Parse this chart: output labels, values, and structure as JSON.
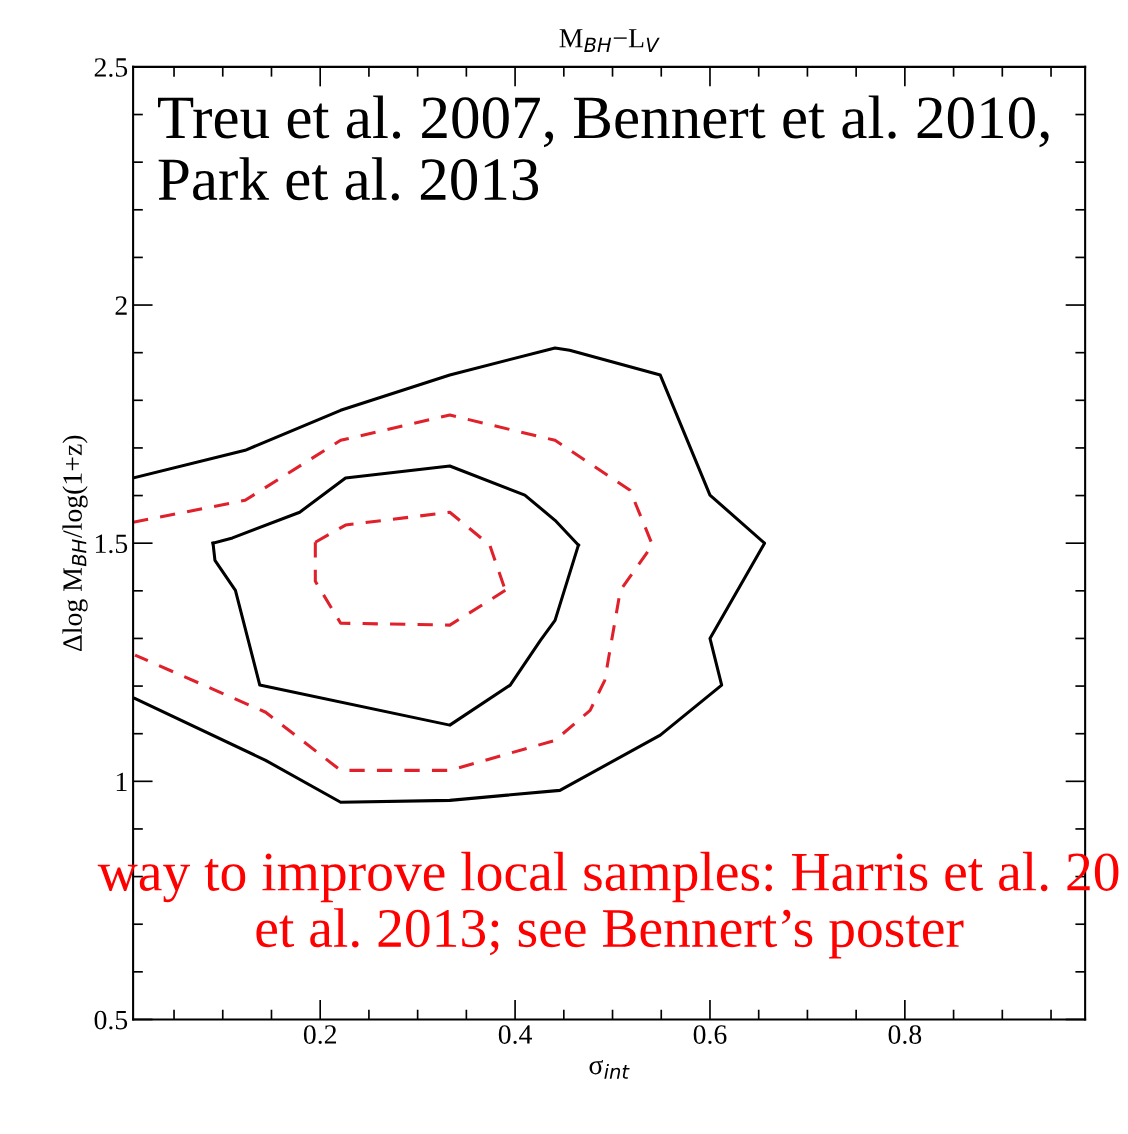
{
  "chart_data": {
    "type": "line",
    "title": "M$_{BH}$−L$_{V}$",
    "xlabel": "σ$_{int}$",
    "ylabel": "Δlog M$_{BH}$/log(1+z)",
    "xlim": [
      0.008,
      0.985
    ],
    "ylim": [
      0.5,
      2.5
    ],
    "xticks": [
      0.2,
      0.4,
      0.6,
      0.8
    ],
    "yticks": [
      0.5,
      1,
      1.5,
      2,
      2.5
    ],
    "grid": false,
    "legend": false,
    "marker": "none",
    "series": [
      {
        "color": "#000000",
        "line_style": "solid",
        "x": [
          0.008,
          0.123,
          0.221,
          0.333,
          0.441,
          0.456,
          0.549,
          0.6,
          0.656,
          0.6,
          0.612,
          0.549,
          0.446,
          0.333,
          0.221,
          0.144,
          0.01
        ],
        "values": [
          1.637,
          1.695,
          1.779,
          1.853,
          1.91,
          1.905,
          1.853,
          1.601,
          1.5,
          1.3,
          1.202,
          1.097,
          0.981,
          0.96,
          0.956,
          1.044,
          1.174
        ]
      },
      {
        "color": "#000000",
        "line_style": "solid",
        "x": [
          0.09,
          0.11,
          0.179,
          0.226,
          0.333,
          0.41,
          0.441,
          0.465
        ],
        "values": [
          1.5,
          1.511,
          1.565,
          1.637,
          1.662,
          1.601,
          1.548,
          1.496
        ]
      },
      {
        "color": "#000000",
        "line_style": "solid",
        "x": [
          0.465,
          0.441,
          0.426,
          0.395,
          0.333,
          0.138,
          0.113,
          0.092,
          0.09
        ],
        "values": [
          1.496,
          1.338,
          1.296,
          1.202,
          1.118,
          1.202,
          1.401,
          1.464,
          1.5
        ]
      },
      {
        "color": "#e0202a",
        "line_style": "dashed",
        "x": [
          0.008,
          0.123,
          0.221,
          0.333,
          0.441,
          0.518,
          0.541,
          0.508,
          0.492,
          0.477,
          0.441,
          0.333,
          0.221,
          0.144,
          0.01
        ],
        "values": [
          1.544,
          1.59,
          1.716,
          1.769,
          1.716,
          1.611,
          1.496,
          1.401,
          1.212,
          1.149,
          1.086,
          1.023,
          1.023,
          1.145,
          1.265
        ]
      },
      {
        "color": "#e0202a",
        "line_style": "dashed",
        "x": [
          0.195,
          0.226,
          0.333,
          0.374,
          0.39
        ],
        "values": [
          1.502,
          1.538,
          1.565,
          1.496,
          1.401
        ]
      },
      {
        "color": "#e0202a",
        "line_style": "dashed",
        "x": [
          0.39,
          0.374,
          0.333,
          0.221,
          0.195,
          0.195
        ],
        "values": [
          1.401,
          1.38,
          1.328,
          1.332,
          1.42,
          1.502
        ]
      }
    ],
    "annotations": [
      "Treu et al. 2007, Bennert et al. 2010,\nPark et al. 2013",
      "way to improve local samples: Harris et al. 20\net al. 2013; see Bennert’s poster"
    ]
  }
}
